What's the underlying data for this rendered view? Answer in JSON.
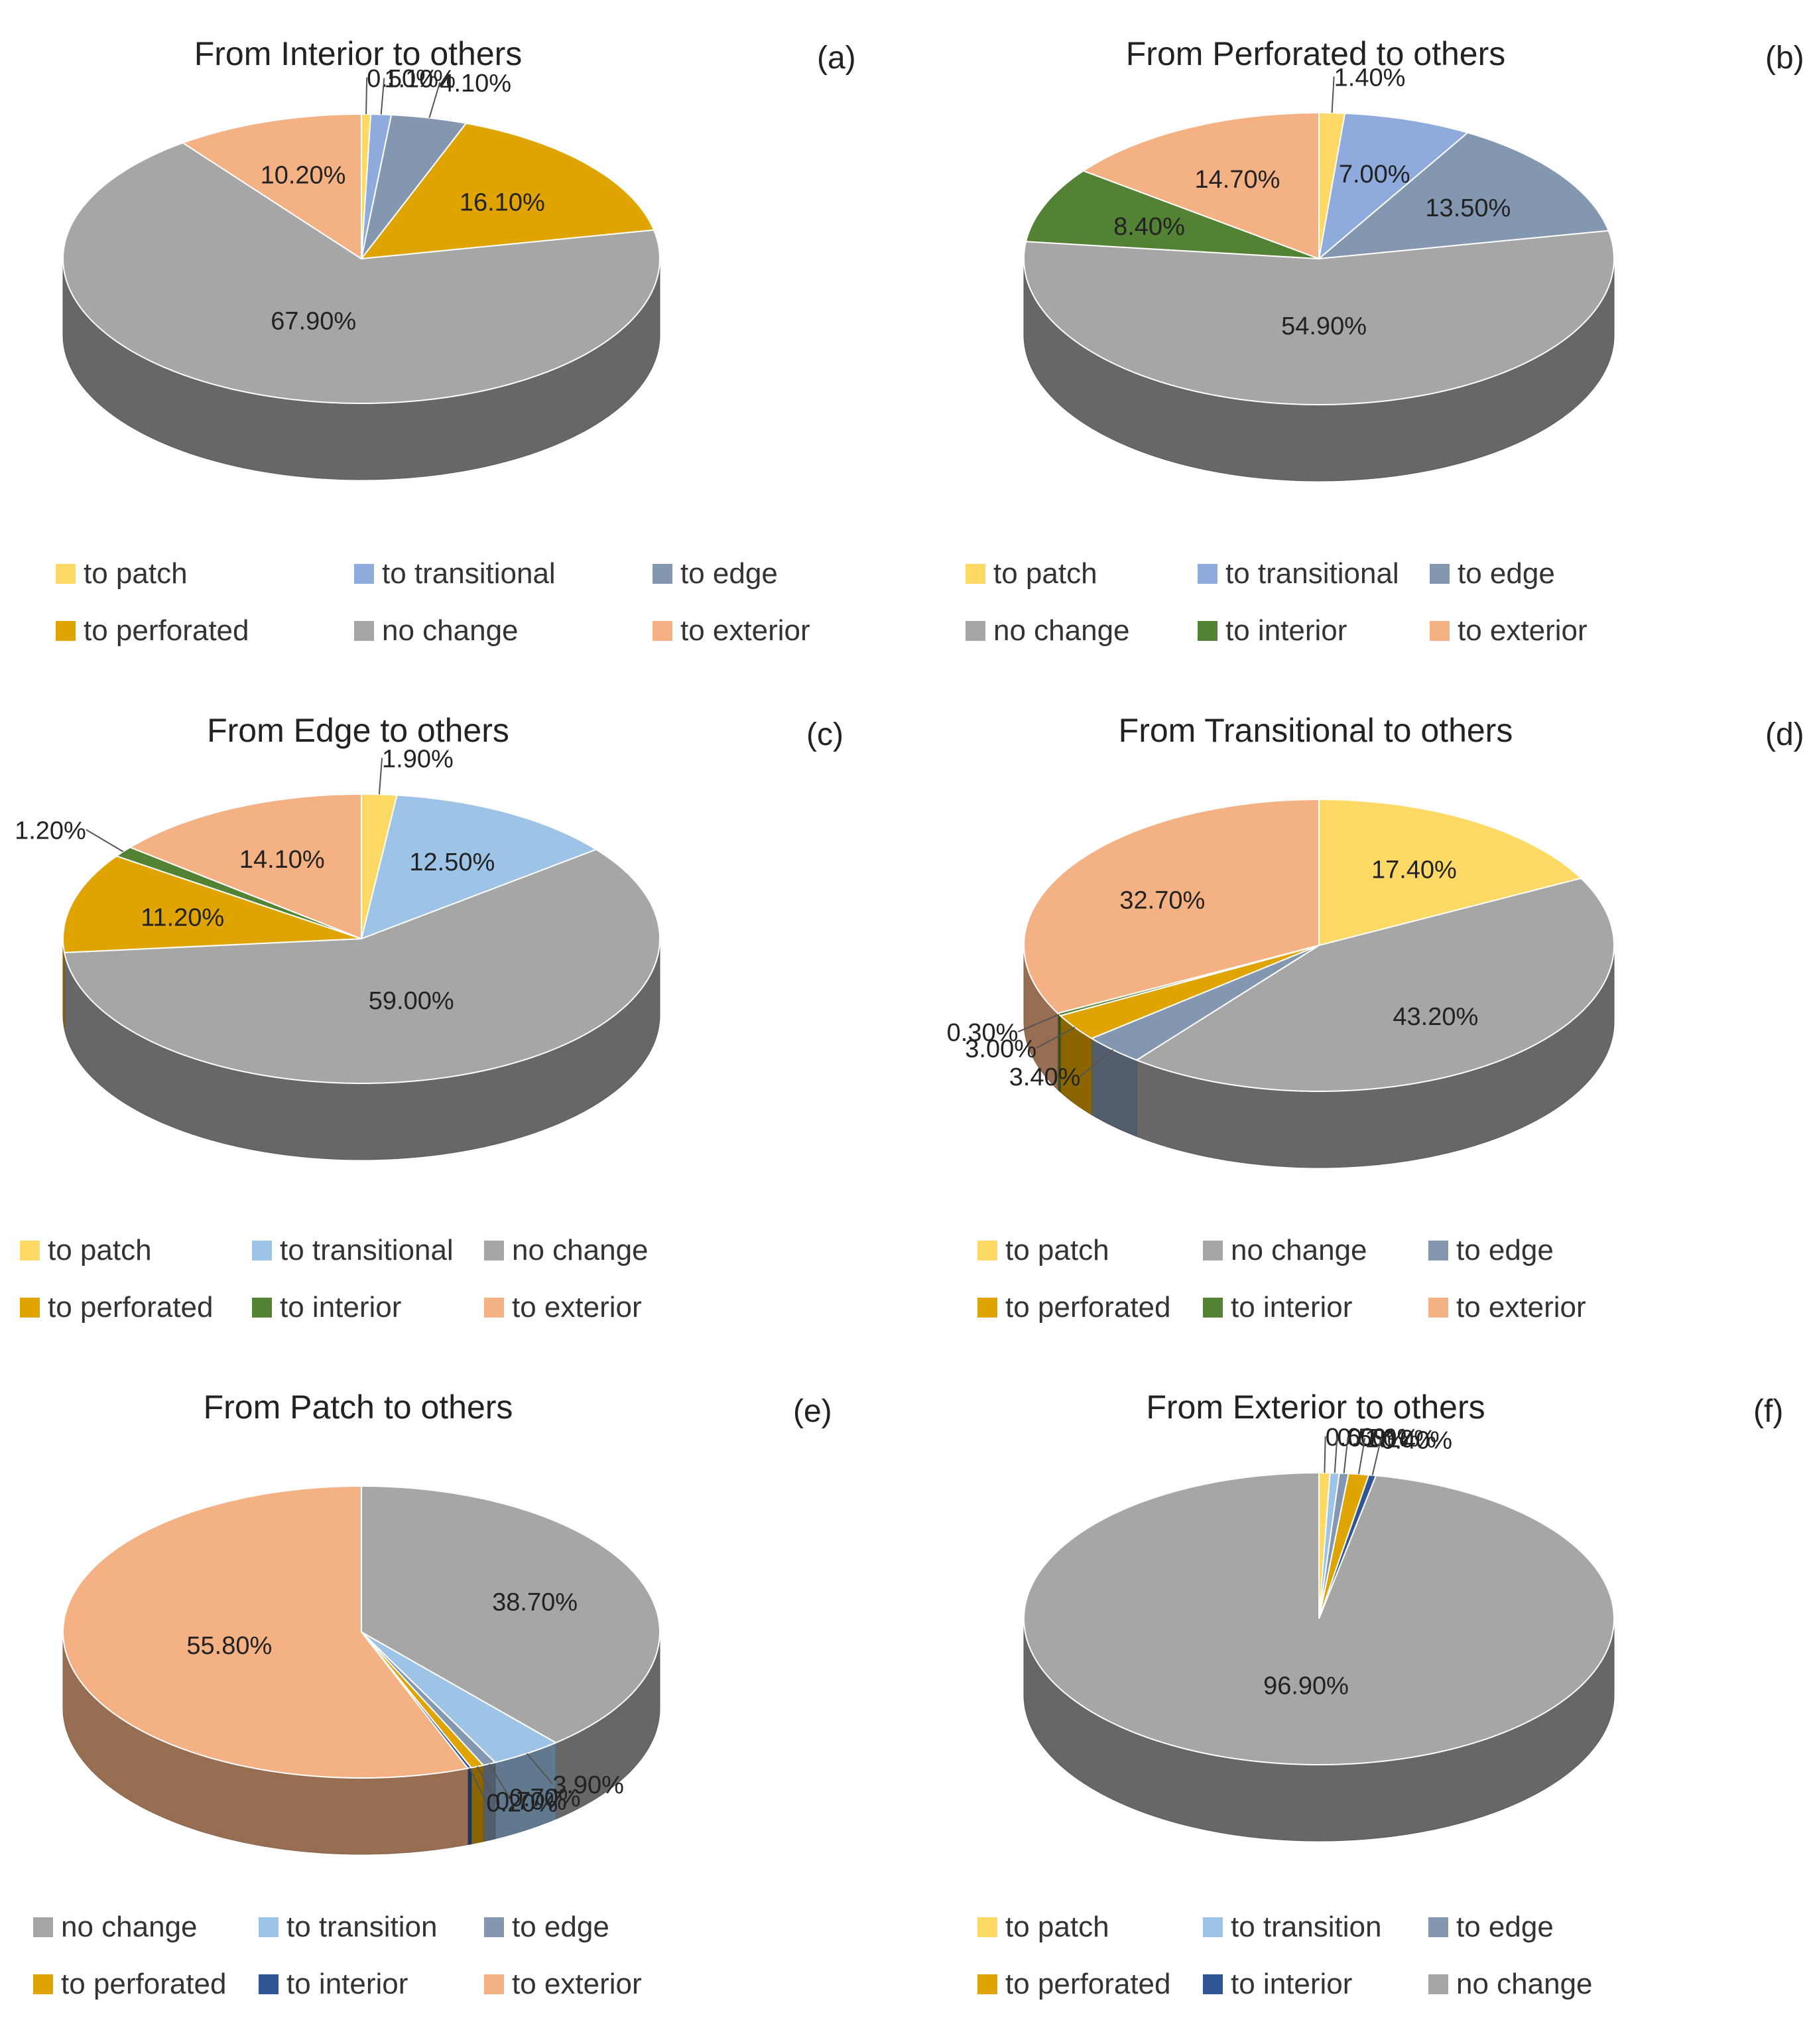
{
  "chart_data": [
    {
      "type": "pie",
      "title": "From Interior to others",
      "panel": "(a)",
      "slices": [
        {
          "label": "to patch",
          "value": 0.5,
          "value_label": "0.50%",
          "color": "#FFD966"
        },
        {
          "label": "to transitional",
          "value": 1.1,
          "value_label": "1.10%",
          "color": "#8FAADC"
        },
        {
          "label": "to edge",
          "value": 4.1,
          "value_label": "4.10%",
          "color": "#8497B0"
        },
        {
          "label": "to perforated",
          "value": 16.1,
          "value_label": "16.10%",
          "color": "#E0A400"
        },
        {
          "label": "no change",
          "value": 67.9,
          "value_label": "67.90%",
          "color": "#A6A6A6"
        },
        {
          "label": "to exterior",
          "value": 10.2,
          "value_label": "10.20%",
          "color": "#F4B183"
        }
      ],
      "legend_order": [
        "to patch",
        "to transitional",
        "to edge",
        "to perforated",
        "no change",
        "to exterior"
      ]
    },
    {
      "type": "pie",
      "title": "From Perforated to others",
      "panel": "(b)",
      "slices": [
        {
          "label": "to patch",
          "value": 1.4,
          "value_label": "1.40%",
          "color": "#FFD966"
        },
        {
          "label": "to transitional",
          "value": 7.0,
          "value_label": "7.00%",
          "color": "#8FAADC"
        },
        {
          "label": "to edge",
          "value": 13.5,
          "value_label": "13.50%",
          "color": "#8497B0"
        },
        {
          "label": "no change",
          "value": 54.9,
          "value_label": "54.90%",
          "color": "#A6A6A6"
        },
        {
          "label": "to interior",
          "value": 8.4,
          "value_label": "8.40%",
          "color": "#548235"
        },
        {
          "label": "to exterior",
          "value": 14.7,
          "value_label": "14.70%",
          "color": "#F4B183"
        }
      ],
      "legend_order": [
        "to patch",
        "to transitional",
        "to edge",
        "no change",
        "to interior",
        "to exterior"
      ]
    },
    {
      "type": "pie",
      "title": "From Edge to others",
      "panel": "(c)",
      "slices": [
        {
          "label": "to patch",
          "value": 1.9,
          "value_label": "1.90%",
          "color": "#FFD966"
        },
        {
          "label": "to transitional",
          "value": 12.5,
          "value_label": "12.50%",
          "color": "#9DC3E6"
        },
        {
          "label": "no change",
          "value": 59.0,
          "value_label": "59.00%",
          "color": "#A6A6A6"
        },
        {
          "label": "to perforated",
          "value": 11.2,
          "value_label": "11.20%",
          "color": "#E0A400"
        },
        {
          "label": "to interior",
          "value": 1.2,
          "value_label": "1.20%",
          "color": "#548235"
        },
        {
          "label": "to exterior",
          "value": 14.1,
          "value_label": "14.10%",
          "color": "#F4B183"
        }
      ],
      "legend_order": [
        "to patch",
        "to transitional",
        "no change",
        "to perforated",
        "to interior",
        "to exterior"
      ]
    },
    {
      "type": "pie",
      "title": "From Transitional to others",
      "panel": "(d)",
      "slices": [
        {
          "label": "to patch",
          "value": 17.4,
          "value_label": "17.40%",
          "color": "#FFD966"
        },
        {
          "label": "no change",
          "value": 43.2,
          "value_label": "43.20%",
          "color": "#A6A6A6"
        },
        {
          "label": "to edge",
          "value": 3.4,
          "value_label": "3.40%",
          "color": "#8497B0"
        },
        {
          "label": "to perforated",
          "value": 3.0,
          "value_label": "3.00%",
          "color": "#E0A400"
        },
        {
          "label": "to interior",
          "value": 0.3,
          "value_label": "0.30%",
          "color": "#548235"
        },
        {
          "label": "to exterior",
          "value": 32.7,
          "value_label": "32.70%",
          "color": "#F4B183"
        }
      ],
      "legend_order": [
        "to patch",
        "no change",
        "to edge",
        "to perforated",
        "to interior",
        "to exterior"
      ]
    },
    {
      "type": "pie",
      "title": "From Patch to others",
      "panel": "(e)",
      "slices": [
        {
          "label": "no change",
          "value": 38.7,
          "value_label": "38.70%",
          "color": "#A6A6A6"
        },
        {
          "label": "to transition",
          "value": 3.9,
          "value_label": "3.90%",
          "color": "#9DC3E6"
        },
        {
          "label": "to edge",
          "value": 0.7,
          "value_label": "0.70%",
          "color": "#8497B0"
        },
        {
          "label": "to perforated",
          "value": 0.7,
          "value_label": "0.70%",
          "color": "#E0A400"
        },
        {
          "label": "to interior",
          "value": 0.2,
          "value_label": "0.20%",
          "color": "#2F5597"
        },
        {
          "label": "to exterior",
          "value": 55.8,
          "value_label": "55.80%",
          "color": "#F4B183"
        }
      ],
      "legend_order": [
        "no change",
        "to transition",
        "to edge",
        "to perforated",
        "to interior",
        "to exterior"
      ]
    },
    {
      "type": "pie",
      "title": "From Exterior to others",
      "panel": "(f)",
      "slices": [
        {
          "label": "to patch",
          "value": 0.6,
          "value_label": "0.60%",
          "color": "#FFD966"
        },
        {
          "label": "to transition",
          "value": 0.5,
          "value_label": "0.50%",
          "color": "#9DC3E6"
        },
        {
          "label": "to edge",
          "value": 0.5,
          "value_label": "0.50%",
          "color": "#8497B0"
        },
        {
          "label": "to perforated",
          "value": 1.1,
          "value_label": "1.10%",
          "color": "#E0A400"
        },
        {
          "label": "to interior",
          "value": 0.4,
          "value_label": "0.40%",
          "color": "#2F5597"
        },
        {
          "label": "no change",
          "value": 96.9,
          "value_label": "96.90%",
          "color": "#A6A6A6"
        }
      ],
      "legend_order": [
        "to patch",
        "to transition",
        "to edge",
        "to perforated",
        "to interior",
        "no change"
      ]
    }
  ]
}
